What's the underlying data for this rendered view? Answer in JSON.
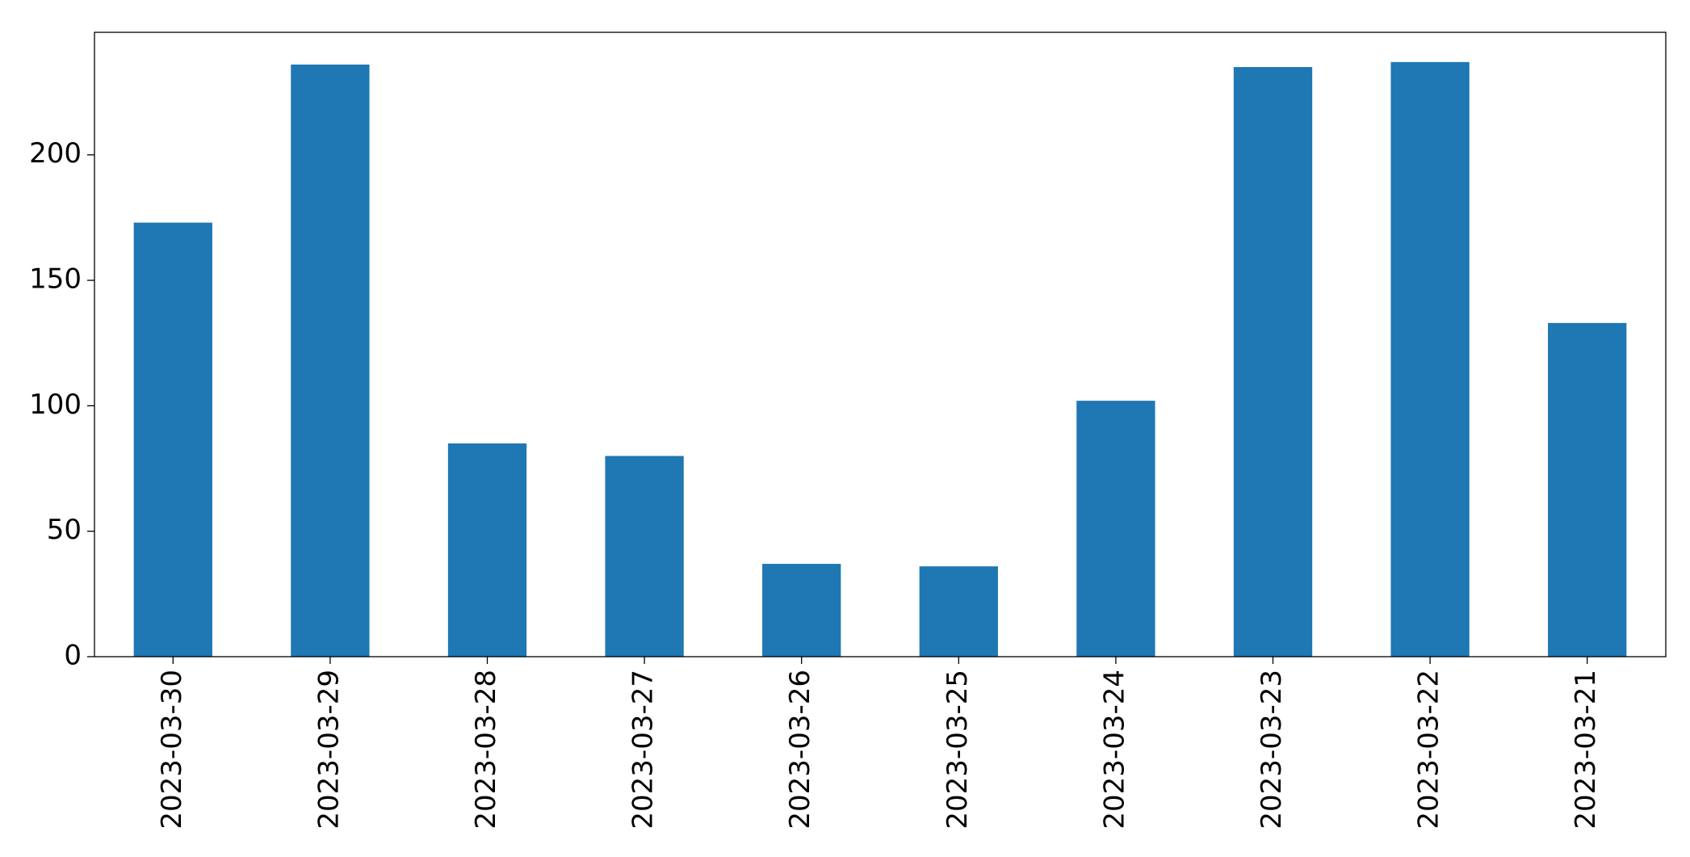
{
  "chart_data": {
    "type": "bar",
    "categories": [
      "2023-03-30",
      "2023-03-29",
      "2023-03-28",
      "2023-03-27",
      "2023-03-26",
      "2023-03-25",
      "2023-03-24",
      "2023-03-23",
      "2023-03-22",
      "2023-03-21"
    ],
    "values": [
      173,
      236,
      85,
      80,
      37,
      36,
      102,
      235,
      237,
      133
    ],
    "color": "#1f77b4",
    "ylim": [
      0,
      248.85
    ],
    "yticks": [
      0,
      50,
      100,
      150,
      200
    ],
    "grid": false
  }
}
